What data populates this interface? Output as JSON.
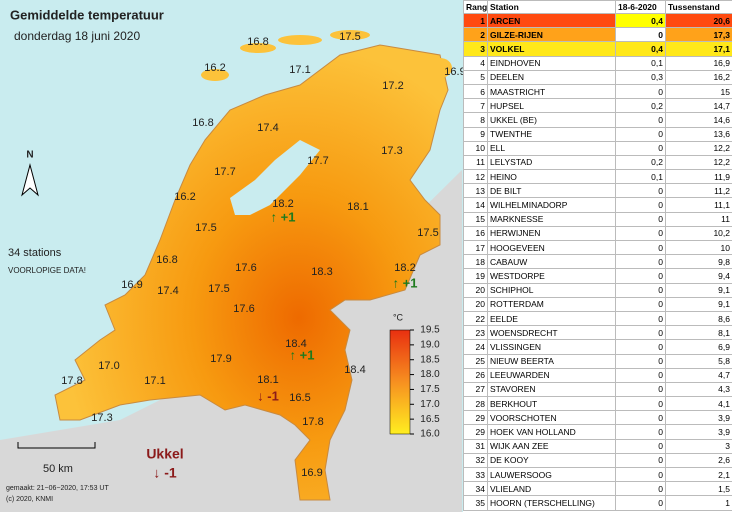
{
  "map": {
    "title": "Gemiddelde temperatuur",
    "subtitle": "donderdag 18 juni 2020",
    "north": "N",
    "stations_note": "34 stations",
    "warning": "VOORLOPIGE DATA!",
    "scale_label": "50 km",
    "footer": [
      "gemaakt: 21−06−2020, 17:53 UT",
      "(c) 2020, KNMI"
    ],
    "labels": [
      "16.8",
      "17.5",
      "16.2",
      "17.1",
      "16.9",
      "17.2",
      "16.8",
      "17.4",
      "17.3",
      "17.7",
      "17.7",
      "16.2",
      "18.2",
      "18.1",
      "17.5",
      "17.5",
      "16.8",
      "17.6",
      "17.4",
      "18.3",
      "18.2",
      "16.9",
      "17.5",
      "17.6",
      "18.4",
      "17.9",
      "17.0",
      "18.4",
      "17.8",
      "17.1",
      "18.1",
      "16.5",
      "17.3",
      "17.8",
      "16.9"
    ],
    "changes": [
      "↑ +1",
      "↑ +1",
      "↑ +1",
      "↓ -1"
    ],
    "ukkel": {
      "name": "Ukkel",
      "change": "↓ -1"
    },
    "legend": {
      "unit": "°C",
      "ticks": [
        "19.5",
        "19.0",
        "18.5",
        "18.0",
        "17.5",
        "17.0",
        "16.5",
        "16.0"
      ]
    }
  },
  "table": {
    "headers": [
      "Rang",
      "Station",
      "18-6-2020",
      "Tussenstand"
    ],
    "rows": [
      [
        "1",
        "ARCEN",
        "0,4",
        "20,6"
      ],
      [
        "2",
        "GILZE-RIJEN",
        "0",
        "17,3"
      ],
      [
        "3",
        "VOLKEL",
        "0,4",
        "17,1"
      ],
      [
        "4",
        "EINDHOVEN",
        "0,1",
        "16,9"
      ],
      [
        "5",
        "DEELEN",
        "0,3",
        "16,2"
      ],
      [
        "6",
        "MAASTRICHT",
        "0",
        "15"
      ],
      [
        "7",
        "HUPSEL",
        "0,2",
        "14,7"
      ],
      [
        "8",
        "UKKEL (BE)",
        "0",
        "14,6"
      ],
      [
        "9",
        "TWENTHE",
        "0",
        "13,6"
      ],
      [
        "10",
        "ELL",
        "0",
        "12,2"
      ],
      [
        "11",
        "LELYSTAD",
        "0,2",
        "12,2"
      ],
      [
        "12",
        "HEINO",
        "0,1",
        "11,9"
      ],
      [
        "13",
        "DE BILT",
        "0",
        "11,2"
      ],
      [
        "14",
        "WILHELMINADORP",
        "0",
        "11,1"
      ],
      [
        "15",
        "MARKNESSE",
        "0",
        "11"
      ],
      [
        "16",
        "HERWIJNEN",
        "0",
        "10,2"
      ],
      [
        "17",
        "HOOGEVEEN",
        "0",
        "10"
      ],
      [
        "18",
        "CABAUW",
        "0",
        "9,8"
      ],
      [
        "19",
        "WESTDORPE",
        "0",
        "9,4"
      ],
      [
        "20",
        "SCHIPHOL",
        "0",
        "9,1"
      ],
      [
        "20",
        "ROTTERDAM",
        "0",
        "9,1"
      ],
      [
        "22",
        "EELDE",
        "0",
        "8,6"
      ],
      [
        "23",
        "WOENSDRECHT",
        "0",
        "8,1"
      ],
      [
        "24",
        "VLISSINGEN",
        "0",
        "6,9"
      ],
      [
        "25",
        "NIEUW BEERTA",
        "0",
        "5,8"
      ],
      [
        "26",
        "LEEUWARDEN",
        "0",
        "4,7"
      ],
      [
        "27",
        "STAVOREN",
        "0",
        "4,3"
      ],
      [
        "28",
        "BERKHOUT",
        "0",
        "4,1"
      ],
      [
        "29",
        "VOORSCHOTEN",
        "0",
        "3,9"
      ],
      [
        "29",
        "HOEK VAN HOLLAND",
        "0",
        "3,9"
      ],
      [
        "31",
        "WIJK AAN ZEE",
        "0",
        "3"
      ],
      [
        "32",
        "DE KOOY",
        "0",
        "2,6"
      ],
      [
        "33",
        "LAUWERSOOG",
        "0",
        "2,1"
      ],
      [
        "34",
        "VLIELAND",
        "0",
        "1,5"
      ],
      [
        "35",
        "HOORN (TERSCHELLING)",
        "0",
        "1"
      ]
    ]
  }
}
